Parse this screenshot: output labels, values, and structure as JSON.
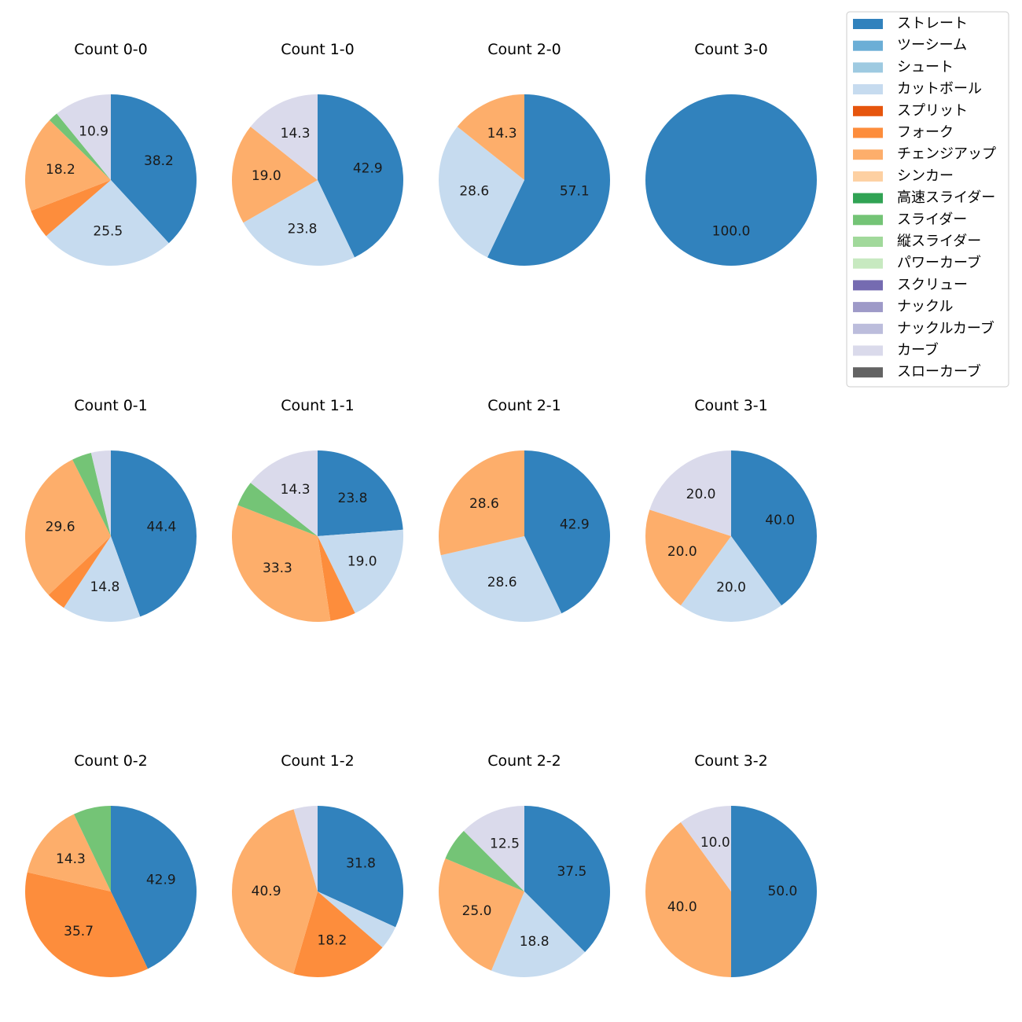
{
  "chart_data": {
    "type": "pie",
    "legend": {
      "placement": "top-right",
      "entries": [
        {
          "name": "ストレート",
          "color": "#3182bd"
        },
        {
          "name": "ツーシーム",
          "color": "#6baed6"
        },
        {
          "name": "シュート",
          "color": "#9ecae1"
        },
        {
          "name": "カットボール",
          "color": "#c6dbef"
        },
        {
          "name": "スプリット",
          "color": "#e6550d"
        },
        {
          "name": "フォーク",
          "color": "#fd8d3c"
        },
        {
          "name": "チェンジアップ",
          "color": "#fdae6b"
        },
        {
          "name": "シンカー",
          "color": "#fdd0a2"
        },
        {
          "name": "高速スライダー",
          "color": "#31a354"
        },
        {
          "name": "スライダー",
          "color": "#74c476"
        },
        {
          "name": "縦スライダー",
          "color": "#a1d99b"
        },
        {
          "name": "パワーカーブ",
          "color": "#c7e9c0"
        },
        {
          "name": "スクリュー",
          "color": "#756bb1"
        },
        {
          "name": "ナックル",
          "color": "#9e9ac8"
        },
        {
          "name": "ナックルカーブ",
          "color": "#bcbddc"
        },
        {
          "name": "カーブ",
          "color": "#dadaeb"
        },
        {
          "name": "スローカーブ",
          "color": "#636363"
        }
      ]
    },
    "pies": [
      {
        "title": "Count 0-0",
        "slices": [
          {
            "pitch": "ストレート",
            "value": 38.2,
            "label": "38.2"
          },
          {
            "pitch": "カットボール",
            "value": 25.5,
            "label": "25.5"
          },
          {
            "pitch": "フォーク",
            "value": 5.5,
            "label": ""
          },
          {
            "pitch": "チェンジアップ",
            "value": 18.2,
            "label": "18.2"
          },
          {
            "pitch": "スライダー",
            "value": 1.8,
            "label": ""
          },
          {
            "pitch": "カーブ",
            "value": 10.9,
            "label": "10.9"
          }
        ]
      },
      {
        "title": "Count 1-0",
        "slices": [
          {
            "pitch": "ストレート",
            "value": 42.9,
            "label": "42.9"
          },
          {
            "pitch": "カットボール",
            "value": 23.8,
            "label": "23.8"
          },
          {
            "pitch": "チェンジアップ",
            "value": 19.0,
            "label": "19.0"
          },
          {
            "pitch": "カーブ",
            "value": 14.3,
            "label": "14.3"
          }
        ]
      },
      {
        "title": "Count 2-0",
        "slices": [
          {
            "pitch": "ストレート",
            "value": 57.1,
            "label": "57.1"
          },
          {
            "pitch": "カットボール",
            "value": 28.6,
            "label": "28.6"
          },
          {
            "pitch": "チェンジアップ",
            "value": 14.3,
            "label": "14.3"
          }
        ]
      },
      {
        "title": "Count 3-0",
        "slices": [
          {
            "pitch": "ストレート",
            "value": 100.0,
            "label": "100.0"
          }
        ]
      },
      {
        "title": "Count 0-1",
        "slices": [
          {
            "pitch": "ストレート",
            "value": 44.4,
            "label": "44.4"
          },
          {
            "pitch": "カットボール",
            "value": 14.8,
            "label": "14.8"
          },
          {
            "pitch": "フォーク",
            "value": 3.7,
            "label": ""
          },
          {
            "pitch": "チェンジアップ",
            "value": 29.6,
            "label": "29.6"
          },
          {
            "pitch": "スライダー",
            "value": 3.7,
            "label": ""
          },
          {
            "pitch": "カーブ",
            "value": 3.7,
            "label": ""
          }
        ]
      },
      {
        "title": "Count 1-1",
        "slices": [
          {
            "pitch": "ストレート",
            "value": 23.8,
            "label": "23.8"
          },
          {
            "pitch": "カットボール",
            "value": 19.0,
            "label": "19.0"
          },
          {
            "pitch": "フォーク",
            "value": 4.8,
            "label": ""
          },
          {
            "pitch": "チェンジアップ",
            "value": 33.3,
            "label": "33.3"
          },
          {
            "pitch": "スライダー",
            "value": 4.8,
            "label": ""
          },
          {
            "pitch": "カーブ",
            "value": 14.3,
            "label": "14.3"
          }
        ]
      },
      {
        "title": "Count 2-1",
        "slices": [
          {
            "pitch": "ストレート",
            "value": 42.9,
            "label": "42.9"
          },
          {
            "pitch": "カットボール",
            "value": 28.6,
            "label": "28.6"
          },
          {
            "pitch": "チェンジアップ",
            "value": 28.6,
            "label": "28.6"
          }
        ]
      },
      {
        "title": "Count 3-1",
        "slices": [
          {
            "pitch": "ストレート",
            "value": 40.0,
            "label": "40.0"
          },
          {
            "pitch": "カットボール",
            "value": 20.0,
            "label": "20.0"
          },
          {
            "pitch": "チェンジアップ",
            "value": 20.0,
            "label": "20.0"
          },
          {
            "pitch": "カーブ",
            "value": 20.0,
            "label": "20.0"
          }
        ]
      },
      {
        "title": "Count 0-2",
        "slices": [
          {
            "pitch": "ストレート",
            "value": 42.9,
            "label": "42.9"
          },
          {
            "pitch": "フォーク",
            "value": 35.7,
            "label": "35.7"
          },
          {
            "pitch": "チェンジアップ",
            "value": 14.3,
            "label": "14.3"
          },
          {
            "pitch": "スライダー",
            "value": 7.1,
            "label": ""
          }
        ]
      },
      {
        "title": "Count 1-2",
        "slices": [
          {
            "pitch": "ストレート",
            "value": 31.8,
            "label": "31.8"
          },
          {
            "pitch": "カットボール",
            "value": 4.5,
            "label": ""
          },
          {
            "pitch": "フォーク",
            "value": 18.2,
            "label": "18.2"
          },
          {
            "pitch": "チェンジアップ",
            "value": 40.9,
            "label": "40.9"
          },
          {
            "pitch": "カーブ",
            "value": 4.5,
            "label": ""
          }
        ]
      },
      {
        "title": "Count 2-2",
        "slices": [
          {
            "pitch": "ストレート",
            "value": 37.5,
            "label": "37.5"
          },
          {
            "pitch": "カットボール",
            "value": 18.8,
            "label": "18.8"
          },
          {
            "pitch": "チェンジアップ",
            "value": 25.0,
            "label": "25.0"
          },
          {
            "pitch": "スライダー",
            "value": 6.2,
            "label": ""
          },
          {
            "pitch": "カーブ",
            "value": 12.5,
            "label": "12.5"
          }
        ]
      },
      {
        "title": "Count 3-2",
        "slices": [
          {
            "pitch": "ストレート",
            "value": 50.0,
            "label": "50.0"
          },
          {
            "pitch": "チェンジアップ",
            "value": 40.0,
            "label": "40.0"
          },
          {
            "pitch": "カーブ",
            "value": 10.0,
            "label": "10.0"
          }
        ]
      }
    ]
  }
}
